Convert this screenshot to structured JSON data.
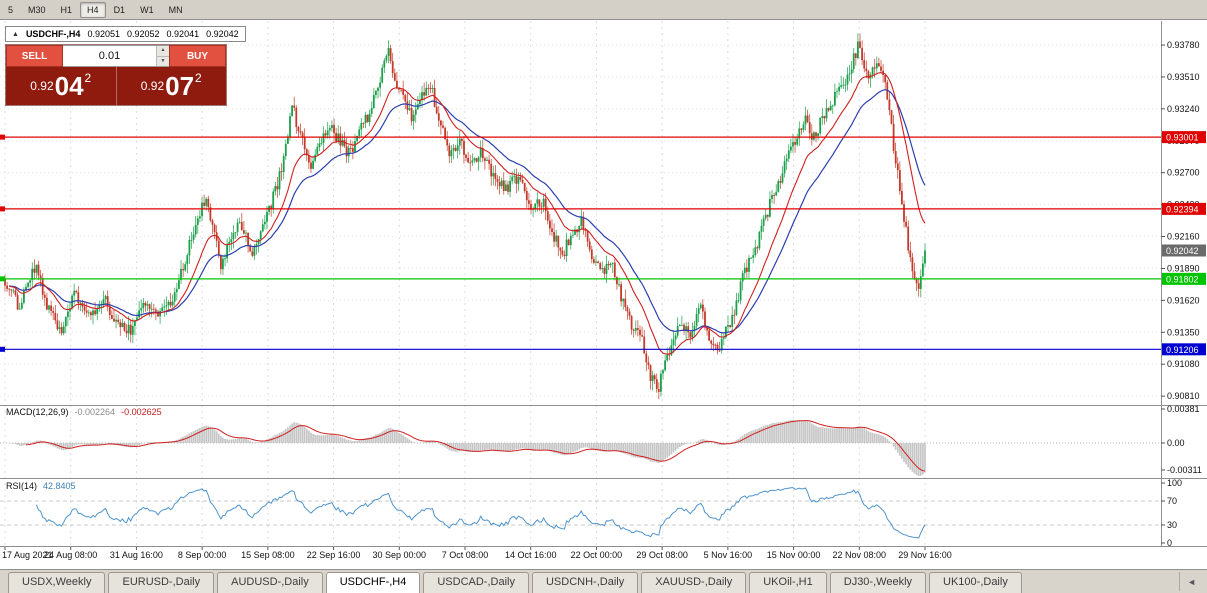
{
  "colors": {
    "up": "#1aa04b",
    "down": "#c33a2a",
    "macd_hist": "#c6c6c6",
    "macd_signal": "#d02020",
    "rsi": "#4f94cd",
    "trade_panel_bg": "#8f1a0e",
    "sell_buy_button": "#e2503f"
  },
  "toolbar": {
    "timeframes": [
      "5",
      "M30",
      "H1",
      "H4",
      "D1",
      "W1",
      "MN"
    ],
    "active": "H4"
  },
  "chart_header": {
    "collapse_icon": "▲",
    "symbol": "USDCHF-,H4",
    "open": "0.92051",
    "high": "0.92052",
    "low": "0.92041",
    "close": "0.92042"
  },
  "trade_panel": {
    "sell_label": "SELL",
    "buy_label": "BUY",
    "volume": "0.01",
    "sell_price": {
      "prefix": "0.92",
      "big": "04",
      "pip": "2"
    },
    "buy_price": {
      "prefix": "0.92",
      "big": "07",
      "pip": "2"
    }
  },
  "icons": {
    "volume_up": "▲",
    "volume_down": "▼"
  },
  "lines": [
    {
      "label": "0.93001",
      "value": 0.93001,
      "color": "#e00000"
    },
    {
      "label": "0.92394",
      "value": 0.92394,
      "color": "#e00000"
    },
    {
      "label": "0.91802",
      "value": 0.91802,
      "color": "#00c400"
    },
    {
      "label": "0.91206",
      "value": 0.91206,
      "color": "#0000d0"
    }
  ],
  "current_price": {
    "label": "0.92042",
    "value": 0.92042,
    "box_color": "#6b6b6b"
  },
  "macd_panel": {
    "label": "MACD(12,26,9)",
    "value_main": "-0.002264",
    "value_signal": "-0.002625",
    "axis_top": "0.00381",
    "axis_zero": "0.00",
    "axis_bottom": "-0.00311"
  },
  "rsi_panel": {
    "label": "RSI(14)",
    "value": "42.8405",
    "axis": [
      "100",
      "70",
      "30",
      "0"
    ]
  },
  "tabs": {
    "items": [
      "USDX,Weekly",
      "EURUSD-,Daily",
      "AUDUSD-,Daily",
      "USDCHF-,H4",
      "USDCAD-,Daily",
      "USDCNH-,Daily",
      "XAUUSD-,Daily",
      "UKOil-,H1",
      "DJ30-,Weekly",
      "UK100-,Daily"
    ],
    "active_index": 3,
    "scroll_left_icon": "◄"
  },
  "chart_data": {
    "type": "candlestick",
    "symbol": "USDCHF-",
    "timeframe": "H4",
    "last_close": 0.92042,
    "candles_count": 440,
    "visible_range": {
      "price_min": 0.90735,
      "price_max": 0.93924
    },
    "y_ticks": [
      "0.93780",
      "0.93510",
      "0.93240",
      "0.92970",
      "0.92700",
      "0.92430",
      "0.92160",
      "0.91890",
      "0.91620",
      "0.91350",
      "0.91080",
      "0.90810"
    ],
    "x_labels": [
      "17 Aug 2021",
      "24 Aug 08:00",
      "31 Aug 16:00",
      "8 Sep 00:00",
      "15 Sep 08:00",
      "22 Sep 16:00",
      "30 Sep 00:00",
      "7 Oct 08:00",
      "14 Oct 16:00",
      "22 Oct 00:00",
      "29 Oct 08:00",
      "5 Nov 16:00",
      "15 Nov 00:00",
      "22 Nov 08:00",
      "29 Nov 16:00"
    ],
    "grid": true,
    "legend": "none",
    "indicators": {
      "ma_fast": {
        "type": "EMA",
        "period": 18,
        "color": "#d02020"
      },
      "ma_slow": {
        "type": "EMA",
        "period": 34,
        "color": "#2c3fae"
      },
      "macd": {
        "fast": 12,
        "slow": 26,
        "signal": 9
      },
      "rsi": {
        "period": 14
      }
    },
    "price_path": [
      [
        0.0,
        0.918
      ],
      [
        0.016,
        0.9155
      ],
      [
        0.033,
        0.9192
      ],
      [
        0.049,
        0.915
      ],
      [
        0.062,
        0.9138
      ],
      [
        0.076,
        0.9168
      ],
      [
        0.092,
        0.9152
      ],
      [
        0.109,
        0.9162
      ],
      [
        0.123,
        0.914
      ],
      [
        0.136,
        0.9136
      ],
      [
        0.152,
        0.916
      ],
      [
        0.168,
        0.9152
      ],
      [
        0.185,
        0.9166
      ],
      [
        0.201,
        0.921
      ],
      [
        0.217,
        0.9248
      ],
      [
        0.225,
        0.9228
      ],
      [
        0.234,
        0.9192
      ],
      [
        0.245,
        0.9212
      ],
      [
        0.255,
        0.9232
      ],
      [
        0.268,
        0.9202
      ],
      [
        0.279,
        0.9222
      ],
      [
        0.293,
        0.9252
      ],
      [
        0.304,
        0.9282
      ],
      [
        0.312,
        0.9328
      ],
      [
        0.321,
        0.93
      ],
      [
        0.332,
        0.9276
      ],
      [
        0.342,
        0.9292
      ],
      [
        0.353,
        0.931
      ],
      [
        0.364,
        0.9296
      ],
      [
        0.375,
        0.9286
      ],
      [
        0.386,
        0.931
      ],
      [
        0.397,
        0.932
      ],
      [
        0.405,
        0.9342
      ],
      [
        0.416,
        0.9374
      ],
      [
        0.424,
        0.935
      ],
      [
        0.433,
        0.933
      ],
      [
        0.442,
        0.9318
      ],
      [
        0.451,
        0.9336
      ],
      [
        0.462,
        0.9345
      ],
      [
        0.473,
        0.931
      ],
      [
        0.484,
        0.9286
      ],
      [
        0.495,
        0.9296
      ],
      [
        0.505,
        0.9276
      ],
      [
        0.516,
        0.9288
      ],
      [
        0.529,
        0.927
      ],
      [
        0.543,
        0.9256
      ],
      [
        0.558,
        0.9266
      ],
      [
        0.571,
        0.924
      ],
      [
        0.584,
        0.9246
      ],
      [
        0.595,
        0.922
      ],
      [
        0.605,
        0.92
      ],
      [
        0.616,
        0.9216
      ],
      [
        0.627,
        0.923
      ],
      [
        0.638,
        0.92
      ],
      [
        0.649,
        0.9186
      ],
      [
        0.66,
        0.9196
      ],
      [
        0.671,
        0.916
      ],
      [
        0.682,
        0.914
      ],
      [
        0.692,
        0.9132
      ],
      [
        0.701,
        0.91
      ],
      [
        0.71,
        0.9086
      ],
      [
        0.717,
        0.911
      ],
      [
        0.725,
        0.9126
      ],
      [
        0.734,
        0.914
      ],
      [
        0.745,
        0.9136
      ],
      [
        0.755,
        0.9158
      ],
      [
        0.766,
        0.913
      ],
      [
        0.775,
        0.9122
      ],
      [
        0.784,
        0.9136
      ],
      [
        0.792,
        0.915
      ],
      [
        0.801,
        0.9178
      ],
      [
        0.81,
        0.92
      ],
      [
        0.818,
        0.921
      ],
      [
        0.827,
        0.9232
      ],
      [
        0.836,
        0.9254
      ],
      [
        0.845,
        0.927
      ],
      [
        0.853,
        0.9288
      ],
      [
        0.862,
        0.93
      ],
      [
        0.871,
        0.9316
      ],
      [
        0.877,
        0.9302
      ],
      [
        0.884,
        0.9308
      ],
      [
        0.893,
        0.932
      ],
      [
        0.901,
        0.9332
      ],
      [
        0.91,
        0.9342
      ],
      [
        0.918,
        0.9356
      ],
      [
        0.927,
        0.9376
      ],
      [
        0.934,
        0.936
      ],
      [
        0.94,
        0.9346
      ],
      [
        0.947,
        0.9364
      ],
      [
        0.953,
        0.9354
      ],
      [
        0.96,
        0.933
      ],
      [
        0.966,
        0.9292
      ],
      [
        0.973,
        0.9252
      ],
      [
        0.979,
        0.9222
      ],
      [
        0.986,
        0.9186
      ],
      [
        0.992,
        0.917
      ],
      [
        1.0,
        0.9204
      ]
    ]
  }
}
